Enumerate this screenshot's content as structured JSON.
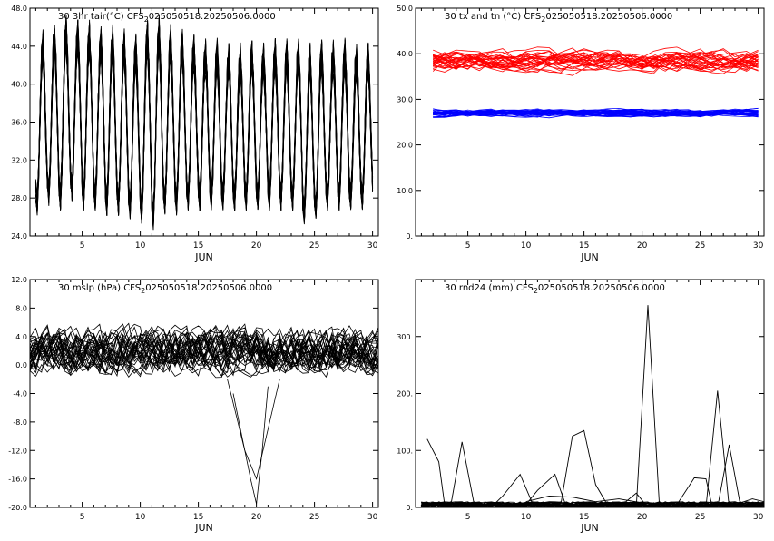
{
  "chart_data": [
    {
      "id": "tair",
      "type": "line",
      "title": "30 3hr tair(°C) CFS",
      "title_sub": "2",
      "title_tail": "025050518.20250506.0000",
      "xlabel": "JUN",
      "xlim": [
        0.5,
        30.5
      ],
      "ylim": [
        24,
        48
      ],
      "xticks": [
        5,
        10,
        15,
        20,
        25,
        30
      ],
      "yticks": [
        "24.0",
        "28.0",
        "32.0",
        "36.0",
        "40.0",
        "44.0",
        "48.0"
      ],
      "ensemble_members": 30,
      "series": [
        {
          "color": "#000000",
          "days_start": 1,
          "step_days": 0.125,
          "diurnal_min": [
            26.0,
            27.0,
            26.5,
            27.5,
            26.5,
            26.5,
            26.0,
            26.0,
            25.5,
            25.0,
            24.5,
            26.0,
            26.0,
            26.5,
            26.5,
            26.5,
            26.5,
            26.5,
            26.5,
            26.5,
            26.5,
            26.5,
            26.5,
            25.0,
            25.5,
            26.5,
            26.5,
            26.5,
            26.5,
            27.0
          ],
          "diurnal_max": [
            46.0,
            47.0,
            47.5,
            47.0,
            47.0,
            46.5,
            46.5,
            46.0,
            45.5,
            47.0,
            47.5,
            46.5,
            46.0,
            45.5,
            45.0,
            45.0,
            44.5,
            44.5,
            45.0,
            44.5,
            45.0,
            45.0,
            45.0,
            44.5,
            45.0,
            45.0,
            45.0,
            44.5,
            44.5,
            43.5
          ]
        }
      ]
    },
    {
      "id": "txtn",
      "type": "line",
      "title": "30 tx and tn (°C) CFS",
      "title_sub": "2",
      "title_tail": "025050518.20250506.0000",
      "xlabel": "JUN",
      "xlim": [
        0.5,
        30.5
      ],
      "ylim": [
        0,
        50
      ],
      "xticks": [
        5,
        10,
        15,
        20,
        25,
        30
      ],
      "yticks": [
        "0.",
        "10.0",
        "20.0",
        "30.0",
        "40.0",
        "50.0"
      ],
      "ensemble_members": 30,
      "series": [
        {
          "color": "#ff0000",
          "days": [
            2,
            30
          ],
          "mean": 38.5,
          "spread": 3.5
        },
        {
          "color": "#0000ff",
          "days": [
            2,
            30
          ],
          "mean": 27.0,
          "spread": 1.2
        }
      ]
    },
    {
      "id": "mslp",
      "type": "line",
      "title": "30 mslp (hPa) CFS",
      "title_sub": "2",
      "title_tail": "025050518.20250506.0000",
      "xlabel": "JUN",
      "xlim": [
        0.5,
        30.5
      ],
      "ylim": [
        -20,
        12
      ],
      "xticks": [
        5,
        10,
        15,
        20,
        25,
        30
      ],
      "yticks": [
        "-20.0",
        "-16.0",
        "-12.0",
        "-8.0",
        "-4.0",
        "0.0",
        "4.0",
        "8.0",
        "12.0"
      ],
      "ensemble_members": 30,
      "series": [
        {
          "color": "#000000",
          "days": [
            0.5,
            30.5
          ],
          "mean": 2.0,
          "spread": 3.5,
          "extreme": {
            "x": [
              19.0,
              19.5,
              20.0,
              20.5
            ],
            "y": [
              -12.0,
              -16.0,
              -19.5,
              -12.0
            ]
          }
        }
      ]
    },
    {
      "id": "rnd24",
      "type": "line",
      "title": "30 rnd24 (mm) CFS",
      "title_sub": "2",
      "title_tail": "025050518.20250506.0000",
      "xlabel": "JUN",
      "xlim": [
        0.5,
        30.5
      ],
      "ylim": [
        0,
        400
      ],
      "xticks": [
        5,
        10,
        15,
        20,
        25,
        30
      ],
      "yticks": [
        "0.",
        "100.",
        "200.",
        "300."
      ],
      "ensemble_members": 30,
      "series": [
        {
          "color": "#000000",
          "x": [
            1.5,
            2.5,
            3.0,
            3.5
          ],
          "y": [
            120,
            80,
            5,
            0
          ]
        },
        {
          "color": "#000000",
          "x": [
            3.5,
            4.5,
            5.5,
            6.5
          ],
          "y": [
            0,
            115,
            10,
            0
          ]
        },
        {
          "color": "#000000",
          "x": [
            7.0,
            8.0,
            9.5,
            10.5,
            11.5
          ],
          "y": [
            0,
            20,
            58,
            10,
            0
          ]
        },
        {
          "color": "#000000",
          "x": [
            10.0,
            11.0,
            12.5,
            13.5
          ],
          "y": [
            5,
            30,
            58,
            0
          ]
        },
        {
          "color": "#000000",
          "x": [
            13.0,
            14.0,
            15.0,
            16.0,
            17.0
          ],
          "y": [
            5,
            125,
            135,
            40,
            5
          ]
        },
        {
          "color": "#000000",
          "x": [
            19.5,
            20.5,
            21.5
          ],
          "y": [
            0,
            355,
            0
          ]
        },
        {
          "color": "#000000",
          "x": [
            23.0,
            24.5,
            25.5,
            26.0,
            26.5
          ],
          "y": [
            5,
            52,
            50,
            5,
            0
          ]
        },
        {
          "color": "#000000",
          "x": [
            25.5,
            26.5,
            27.5
          ],
          "y": [
            0,
            205,
            0
          ]
        },
        {
          "color": "#000000",
          "x": [
            26.5,
            27.5,
            28.5
          ],
          "y": [
            0,
            110,
            0
          ]
        },
        {
          "color": "#000000",
          "x": [
            10.0,
            12.0,
            14.0,
            16.0,
            18.0,
            20.0
          ],
          "y": [
            10,
            20,
            18,
            10,
            15,
            8
          ]
        },
        {
          "color": "#000000",
          "x": [
            18.0,
            19.5,
            20.5
          ],
          "y": [
            0,
            25,
            0
          ]
        },
        {
          "color": "#000000",
          "x": [
            28.0,
            29.5,
            30.5
          ],
          "y": [
            5,
            15,
            10
          ]
        }
      ],
      "baseline_noise_max": 10
    }
  ]
}
